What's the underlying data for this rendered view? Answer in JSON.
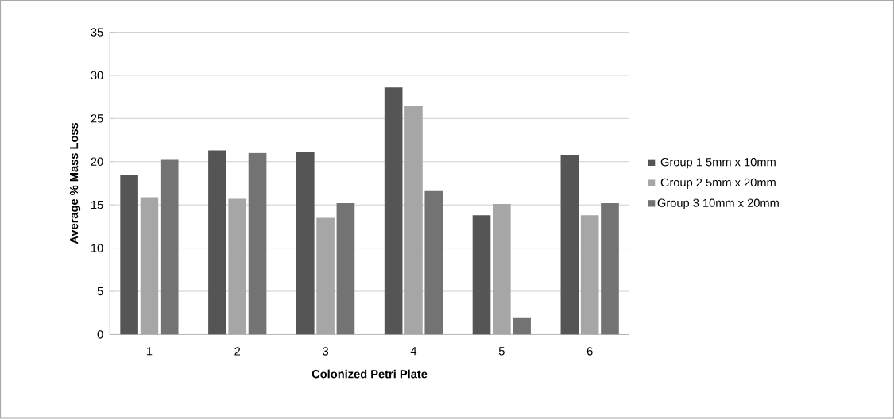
{
  "chart_data": {
    "type": "bar",
    "xlabel": "Colonized Petri Plate",
    "ylabel": "Average % Mass Loss",
    "categories": [
      "1",
      "2",
      "3",
      "4",
      "5",
      "6"
    ],
    "series": [
      {
        "name": "Group 1 5mm x 10mm",
        "color": "#555555",
        "values": [
          18.5,
          21.3,
          21.1,
          28.6,
          13.8,
          20.8
        ]
      },
      {
        "name": "Group 2 5mm x 20mm",
        "color": "#a6a6a6",
        "values": [
          15.9,
          15.7,
          13.5,
          26.4,
          15.1,
          13.8
        ]
      },
      {
        "name": "Group 3 10mm x 20mm",
        "color": "#737373",
        "values": [
          20.3,
          21.0,
          15.2,
          16.6,
          1.9,
          15.2
        ]
      }
    ],
    "ylim": [
      0,
      35
    ],
    "yticks": [
      0,
      5,
      10,
      15,
      20,
      25,
      30,
      35
    ],
    "grid": "y",
    "legend": "right"
  }
}
